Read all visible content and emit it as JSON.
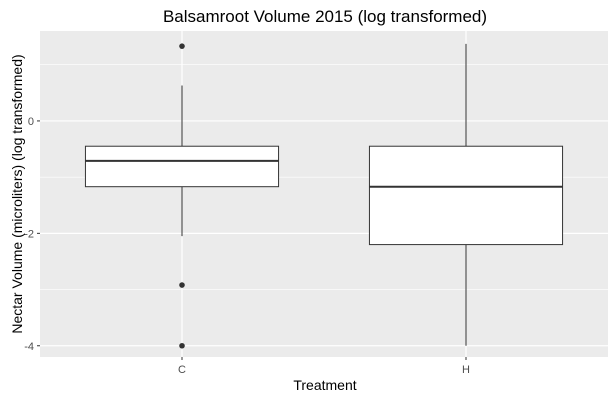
{
  "chart_data": {
    "type": "boxplot",
    "title": "Balsamroot Volume 2015 (log transformed)",
    "xlabel": "Treatment",
    "ylabel": "Nectar Volume (microliters) (log transformed)",
    "categories": [
      "C",
      "H"
    ],
    "ylim": [
      -4.2,
      1.6
    ],
    "yticks": [
      -4,
      -2,
      0
    ],
    "ytick_labels": [
      "-4",
      "-2",
      "0"
    ],
    "grid": true,
    "panel_background": "#ebebeb",
    "grid_color": "#ffffff",
    "box_fill": "#ffffff",
    "box_stroke": "#333333",
    "outlier_color": "#333333",
    "boxes": [
      {
        "category": "C",
        "lower_whisker": -2.05,
        "q1": -1.17,
        "median": -0.71,
        "q3": -0.45,
        "upper_whisker": 0.63,
        "outliers": [
          1.33,
          -2.92,
          -4.0
        ]
      },
      {
        "category": "H",
        "lower_whisker": -4.0,
        "q1": -2.2,
        "median": -1.17,
        "q3": -0.45,
        "upper_whisker": 1.37,
        "outliers": []
      }
    ]
  }
}
